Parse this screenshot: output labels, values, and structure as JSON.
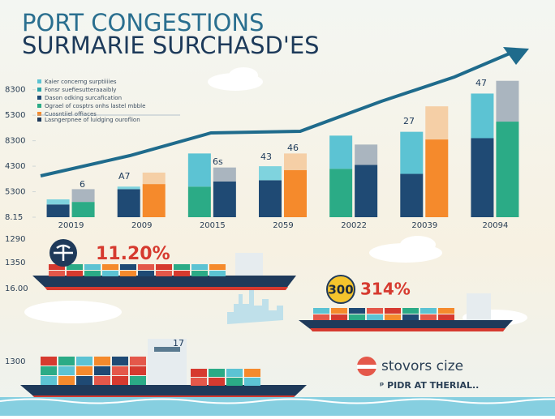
{
  "chart_data": {
    "type": "bar",
    "title": [
      "PORT CONGESTIONS",
      "SURMARIE SURCHASD'ES"
    ],
    "categories": [
      "20019",
      "2009",
      "20015",
      "2059",
      "20022",
      "20039",
      "20094"
    ],
    "stacked": true,
    "series": [
      {
        "stack": "left",
        "values": [
          0.5,
          1.1,
          1.2,
          1.45,
          1.9,
          1.7,
          3.1
        ],
        "colors": [
          "#1f4a74",
          "#1f4a74",
          "#2bab86",
          "#1f4a74",
          "#2bab86",
          "#1f4a74",
          "#1f4a74"
        ]
      },
      {
        "stack": "left",
        "values": [
          0.2,
          0.1,
          1.3,
          0.55,
          1.3,
          1.65,
          1.75
        ],
        "colors": [
          "#7fd3de",
          "#7fd3de",
          "#5cc3d3",
          "#7fd3de",
          "#5cc3d3",
          "#5cc3d3",
          "#5cc3d3"
        ]
      },
      {
        "stack": "right",
        "values": [
          0.6,
          1.3,
          1.4,
          1.85,
          2.05,
          3.05,
          3.75
        ],
        "colors": [
          "#2bab86",
          "#f58a2c",
          "#1f4a74",
          "#f58a2c",
          "#1f4a74",
          "#f58a2c",
          "#2bab86"
        ]
      },
      {
        "stack": "right",
        "values": [
          0.5,
          0.45,
          0.55,
          0.65,
          0.8,
          1.3,
          1.6
        ],
        "colors": [
          "#aab5bf",
          "#f5cfa6",
          "#aab5bf",
          "#f5cfa6",
          "#aab5bf",
          "#f5cfa6",
          "#aab5bf"
        ]
      }
    ],
    "ylim": [
      0,
      5.5
    ],
    "yticks": [
      {
        "value": 0,
        "label": "8.15"
      },
      {
        "value": 1,
        "label": "5300"
      },
      {
        "value": 2,
        "label": "4300"
      },
      {
        "value": 3,
        "label": "8300"
      },
      {
        "value": 4,
        "label": "5300"
      },
      {
        "value": 5,
        "label": "8300"
      }
    ],
    "legend": [
      {
        "label": "Kaier concerng surptiiiies",
        "color": "#5cc3d3"
      },
      {
        "label": "Fonsr suefiesutteraaaibly",
        "color": "#2aa3a8"
      },
      {
        "label": "Dason odking surcafication",
        "color": "#1f4a74"
      },
      {
        "label": "Ograel of cosptrs onhs lastel mbble",
        "color": "#2bab86"
      },
      {
        "label": "Cuosntiiel offiaces",
        "color": "#f58a2c"
      },
      {
        "label": "Lasngerpnee of luidging ouroflion",
        "color": "#1f3a5a"
      }
    ],
    "annotations": [
      "6",
      "A7",
      "6s",
      "43",
      "46",
      "27",
      "47"
    ],
    "lower_axis_labels": [
      "1290",
      "1350",
      "16.00",
      "1300"
    ],
    "callouts": [
      "11.20%",
      "300",
      "314%",
      "17",
      "stovors cize",
      "ᵖ PIDR AT THERIAL.."
    ]
  }
}
